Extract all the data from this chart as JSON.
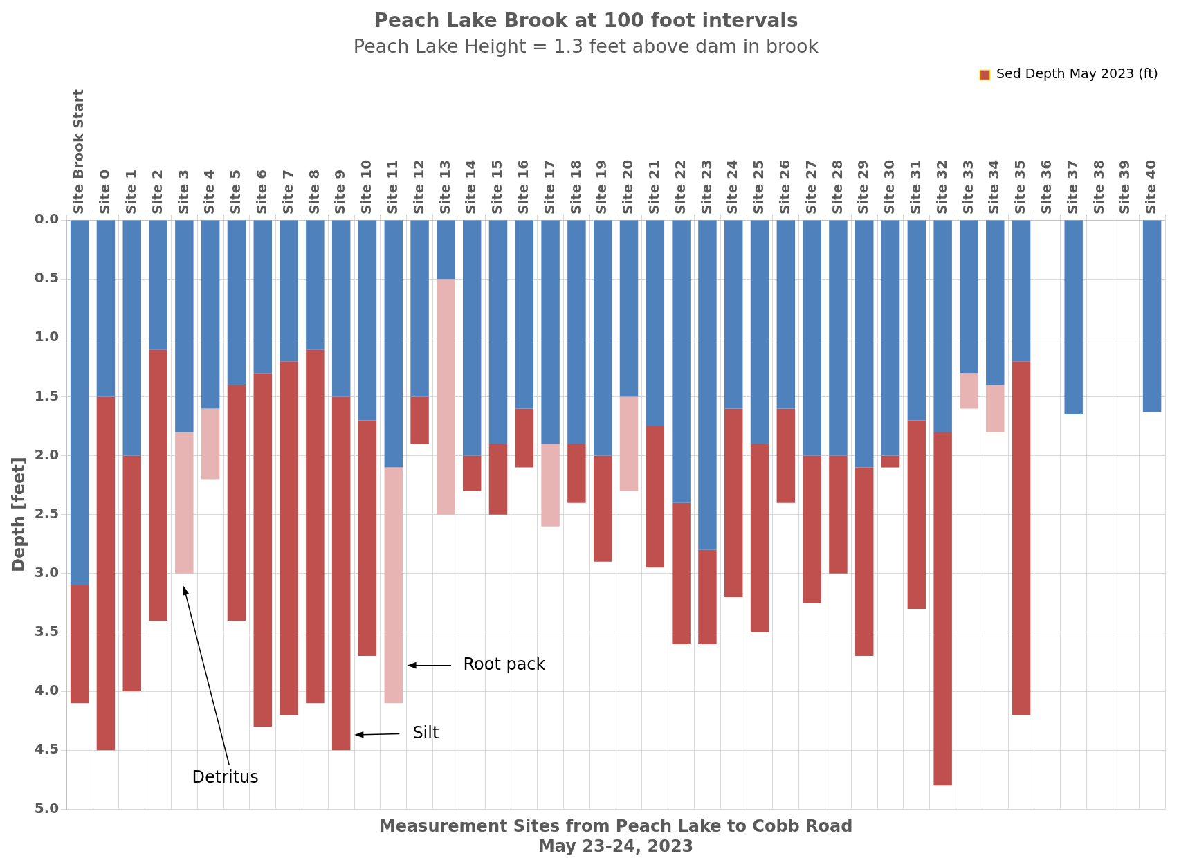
{
  "chart_data": {
    "type": "bar",
    "title": "Peach Lake Brook at 100 foot intervals",
    "subtitle": "Peach Lake Height = 1.3 feet above dam in brook",
    "xlabel": "Measurement Sites from Peach Lake to Cobb Road\nMay 23-24, 2023",
    "ylabel": "Depth [feet]",
    "categories": [
      "Site Brook Start",
      "Site 0",
      "Site 1",
      "Site 2",
      "Site 3",
      "Site 4",
      "Site 5",
      "Site 6",
      "Site 7",
      "Site 8",
      "Site 9",
      "Site 10",
      "Site 11",
      "Site 12",
      "Site 13",
      "Site 14",
      "Site 15",
      "Site 16",
      "Site 17",
      "Site 18",
      "Site 19",
      "Site 20",
      "Site 21",
      "Site 22",
      "Site 23",
      "Site 24",
      "Site 25",
      "Site 26",
      "Site 27",
      "Site 28",
      "Site 29",
      "Site 30",
      "Site 31",
      "Site 32",
      "Site 33",
      "Site 34",
      "Site 35",
      "Site 36",
      "Site 37",
      "Site 38",
      "Site 39",
      "Site 40"
    ],
    "stacked": true,
    "series": [
      {
        "color": "#4f81bd",
        "values": [
          3.1,
          1.5,
          2.0,
          1.1,
          1.8,
          1.6,
          1.4,
          1.3,
          1.2,
          1.1,
          1.5,
          1.7,
          2.1,
          1.5,
          0.5,
          2.0,
          1.9,
          1.6,
          1.9,
          1.9,
          2.0,
          1.5,
          1.75,
          2.4,
          2.8,
          1.6,
          1.9,
          1.6,
          2.0,
          2.0,
          2.1,
          2.0,
          1.7,
          1.8,
          1.3,
          1.4,
          1.2,
          null,
          1.65,
          null,
          null,
          1.63
        ]
      },
      {
        "name": "Sed Depth May 2023 (ft)",
        "color": "#c0504d",
        "colors": [
          "#c0504d",
          "#c0504d",
          "#c0504d",
          "#c0504d",
          "#e8b4b3",
          "#e8b4b3",
          "#c0504d",
          "#c0504d",
          "#c0504d",
          "#c0504d",
          "#c0504d",
          "#c0504d",
          "#e8b4b3",
          "#c0504d",
          "#e8b4b3",
          "#c0504d",
          "#c0504d",
          "#c0504d",
          "#e8b4b3",
          "#c0504d",
          "#c0504d",
          "#e8b4b3",
          "#c0504d",
          "#c0504d",
          "#c0504d",
          "#c0504d",
          "#c0504d",
          "#c0504d",
          "#c0504d",
          "#c0504d",
          "#c0504d",
          "#c0504d",
          "#c0504d",
          "#c0504d",
          "#e8b4b3",
          "#e8b4b3",
          "#c0504d",
          "#c0504d",
          "#c0504d",
          "#c0504d",
          "#c0504d",
          "#c0504d"
        ],
        "values": [
          1.0,
          3.0,
          2.0,
          2.3,
          1.2,
          0.6,
          2.0,
          3.0,
          3.0,
          3.0,
          3.0,
          2.0,
          2.0,
          0.4,
          2.0,
          0.3,
          0.6,
          0.5,
          0.7,
          0.5,
          0.9,
          0.8,
          1.2,
          1.2,
          0.8,
          1.6,
          1.6,
          0.8,
          1.25,
          1.0,
          1.6,
          0.1,
          1.6,
          3.0,
          0.3,
          0.4,
          3.0,
          null,
          null,
          null,
          null,
          null
        ]
      }
    ],
    "ylim": [
      5,
      0
    ],
    "yticks": [
      {
        "value": 0,
        "label": "0.0"
      },
      {
        "value": 0.5,
        "label": "0.5"
      },
      {
        "value": 1,
        "label": "1.0"
      },
      {
        "value": 1.5,
        "label": "1.5"
      },
      {
        "value": 2,
        "label": "2.0"
      },
      {
        "value": 2.5,
        "label": "2.5"
      },
      {
        "value": 3,
        "label": "3.0"
      },
      {
        "value": 3.5,
        "label": "3.5"
      },
      {
        "value": 4,
        "label": "4.0"
      },
      {
        "value": 4.5,
        "label": "4.5"
      },
      {
        "value": 5,
        "label": "5.0"
      }
    ],
    "grid": true,
    "legend": "top right",
    "annotations": [
      "Detritus",
      "Silt",
      "Root pack"
    ]
  }
}
